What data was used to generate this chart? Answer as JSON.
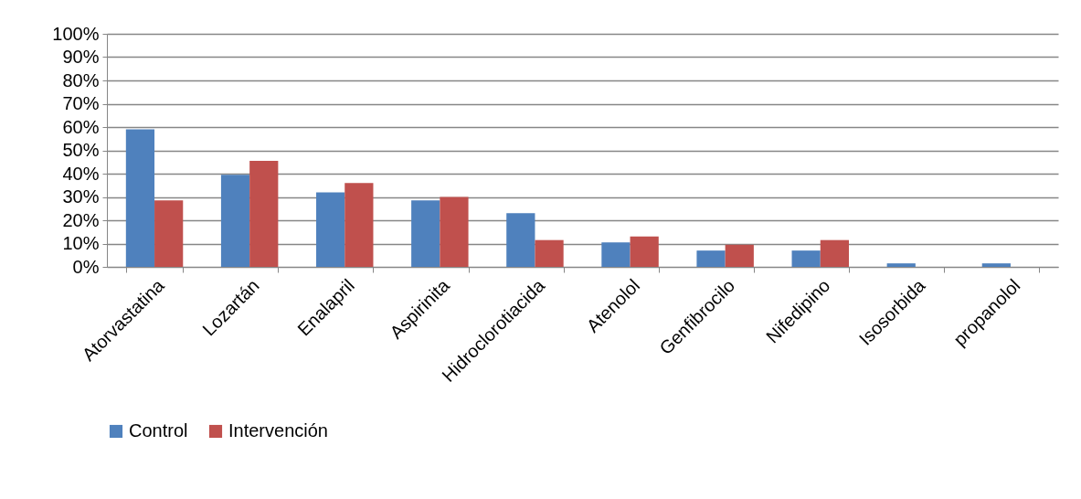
{
  "chart_data": {
    "type": "bar",
    "categories": [
      "Atorvastatina",
      "Lozartán",
      "Enalapril",
      "Aspirinita",
      "Hidroclorotiacida",
      "Atenolol",
      "Genfibrocilo",
      "Nifedipino",
      "Isosorbida",
      "propanolol"
    ],
    "series": [
      {
        "name": "Control",
        "color": "#4f81bd",
        "values": [
          59,
          39.5,
          32,
          28.5,
          23,
          10.5,
          7,
          7,
          1.5,
          1.5
        ]
      },
      {
        "name": "Intervención",
        "color": "#c0504d",
        "values": [
          28.5,
          45.5,
          36,
          30,
          11.5,
          13,
          9.5,
          11.5,
          0,
          0
        ]
      }
    ],
    "ylim": [
      0,
      100
    ],
    "yticks": [
      {
        "value": 0,
        "label": "0%"
      },
      {
        "value": 10,
        "label": "10%"
      },
      {
        "value": 20,
        "label": "20%"
      },
      {
        "value": 30,
        "label": "30%"
      },
      {
        "value": 40,
        "label": "40%"
      },
      {
        "value": 50,
        "label": "50%"
      },
      {
        "value": 60,
        "label": "60%"
      },
      {
        "value": 70,
        "label": "70%"
      },
      {
        "value": 80,
        "label": "80%"
      },
      {
        "value": 90,
        "label": "90%"
      },
      {
        "value": 100,
        "label": "100%"
      }
    ],
    "grid": "y",
    "legend": "bottom"
  }
}
